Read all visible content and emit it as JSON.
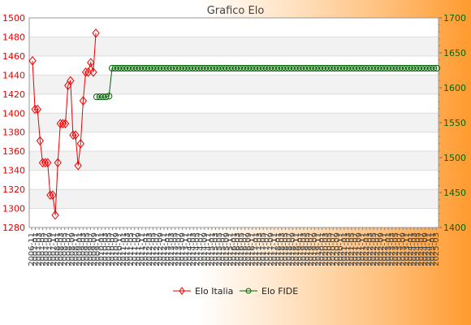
{
  "chart_data": {
    "type": "line",
    "title": "Grafico Elo",
    "xlabel": "",
    "ylabel": "",
    "y_left": {
      "range": [
        1280,
        1500
      ],
      "ticks": [
        1280,
        1300,
        1320,
        1340,
        1360,
        1380,
        1400,
        1420,
        1440,
        1460,
        1480,
        1500
      ],
      "color": "#ee0000"
    },
    "y_right": {
      "range": [
        1400,
        1700
      ],
      "ticks": [
        1400,
        1450,
        1500,
        1550,
        1600,
        1650,
        1700
      ],
      "color": "#006600"
    },
    "grid": true,
    "legend_position": "bottom-center",
    "series": [
      {
        "name": "Elo Italia",
        "axis": "left",
        "color": "#ee0000",
        "marker": "diamond",
        "values": [
          1455,
          1404,
          1404,
          1371,
          1348,
          1348,
          1348,
          1314,
          1314,
          1293,
          1348,
          1389,
          1389,
          1389,
          1429,
          1434,
          1377,
          1377,
          1345,
          1368,
          1413,
          1443,
          1443,
          1453,
          1443,
          1484
        ]
      },
      {
        "name": "Elo FIDE",
        "axis": "right",
        "color": "#006600",
        "marker": "circle",
        "values": [
          1587,
          1587,
          1587,
          1587,
          1588,
          1628,
          1628,
          1628,
          1628,
          1628,
          1628,
          1628,
          1628,
          1628,
          1628,
          1628,
          1628,
          1628,
          1628,
          1628,
          1628,
          1628,
          1628,
          1628,
          1628,
          1628,
          1628,
          1628,
          1628,
          1628,
          1628,
          1628,
          1628,
          1628,
          1628,
          1628,
          1628,
          1628,
          1628,
          1628,
          1628,
          1628,
          1628,
          1628,
          1628,
          1628,
          1628,
          1628,
          1628,
          1628,
          1628,
          1628,
          1628,
          1628,
          1628,
          1628,
          1628,
          1628,
          1628,
          1628,
          1628,
          1628,
          1628,
          1628,
          1628,
          1628,
          1628,
          1628,
          1628,
          1628,
          1628,
          1628,
          1628,
          1628,
          1628,
          1628,
          1628,
          1628,
          1628,
          1628,
          1628,
          1628,
          1628,
          1628,
          1628,
          1628,
          1628,
          1628,
          1628,
          1628,
          1628,
          1628,
          1628,
          1628,
          1628,
          1628,
          1628,
          1628,
          1628,
          1628,
          1628,
          1628,
          1628,
          1628,
          1628,
          1628,
          1628,
          1628,
          1628,
          1628,
          1628
        ]
      }
    ],
    "x_tick_labels": [
      "2006-11",
      "2007-01",
      "2007-03",
      "2007-05",
      "2007-07",
      "2007-09",
      "2007-11",
      "2008-01",
      "2008-03",
      "2008-05",
      "2008-07",
      "2008-09",
      "2008-11",
      "2009-01",
      "2009-03",
      "2009-05",
      "2009-07",
      "2009-09",
      "2009-11",
      "2010-01",
      "2010-03",
      "2010-05",
      "2010-07",
      "2010-09",
      "2010-11",
      "2011-01",
      "2011-03",
      "2011-05",
      "2011-07",
      "2011-09",
      "2011-11",
      "2012-01",
      "2012-03",
      "2012-05",
      "2012-07",
      "2012-09",
      "2012-11",
      "2013-01",
      "2013-03",
      "2013-05",
      "2013-07",
      "2013-09",
      "2013-11",
      "2014-01",
      "2014-03",
      "2014-05",
      "2014-07",
      "2014-09",
      "2014-11",
      "2015-01",
      "2015-03",
      "2015-05",
      "2015-07",
      "2015-09",
      "2015-11",
      "2016-01",
      "2016-03",
      "2016-05",
      "2016-07",
      "2016-09",
      "2016-11",
      "2017-01",
      "2017-03",
      "2017-05",
      "2017-07",
      "2017-09",
      "2017-11",
      "2018-01",
      "2018-03",
      "2018-05",
      "2018-07",
      "2018-09",
      "2018-11",
      "2019-01",
      "2019-03",
      "2019-05",
      "2019-07",
      "2019-09",
      "2019-11",
      "2020-01",
      "2020-03",
      "2020-05",
      "2020-07",
      "2020-09",
      "2020-11",
      "2021-01",
      "2021-03",
      "2021-05",
      "2021-07",
      "2021-09",
      "2021-11",
      "2022-01",
      "2022-03",
      "2022-05",
      "2022-07",
      "2022-09",
      "2022-11",
      "2023-01",
      "2023-03",
      "2023-05",
      "2023-07",
      "2023-09",
      "2023-11",
      "2024-01",
      "2024-03",
      "2024-05",
      "2024-07",
      "2024-09",
      "2024-11",
      "2025-01",
      "2025-03"
    ]
  }
}
